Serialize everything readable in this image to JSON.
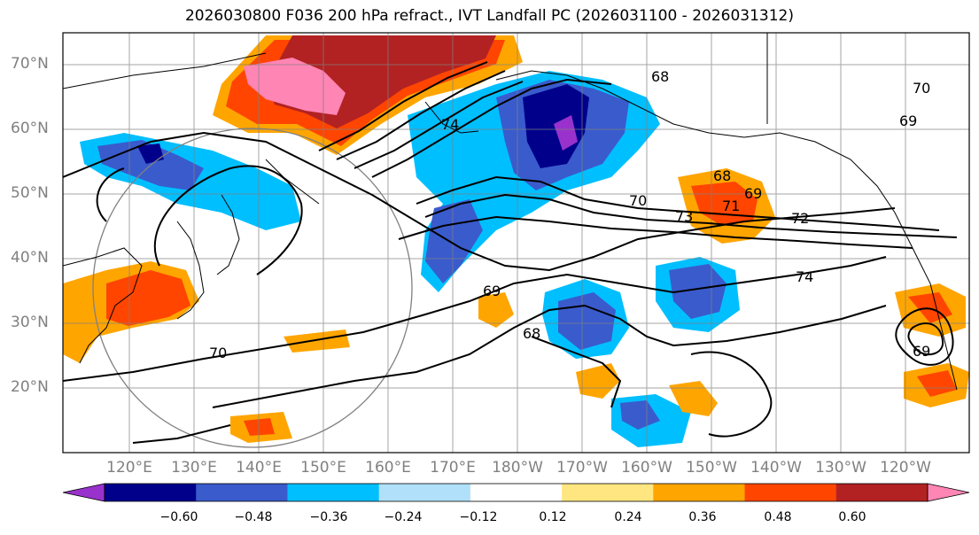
{
  "title": "2026030800 F036 200 hPa refract., IVT Landfall PC (2026031100 - 2026031312)",
  "lat_labels": [
    "70°N",
    "60°N",
    "50°N",
    "40°N",
    "30°N",
    "20°N"
  ],
  "lon_labels": [
    "120°E",
    "130°E",
    "140°E",
    "150°E",
    "160°E",
    "170°E",
    "180°W",
    "170°W",
    "160°W",
    "150°W",
    "140°W",
    "130°W",
    "120°W"
  ],
  "contour_labels": [
    "68",
    "69",
    "70",
    "71",
    "72",
    "73",
    "74"
  ],
  "colorbar": {
    "ticks": [
      "−0.60",
      "−0.48",
      "−0.36",
      "−0.24",
      "−0.12",
      "0.12",
      "0.24",
      "0.36",
      "0.48",
      "0.60"
    ],
    "colors": [
      "#9932cc",
      "#00008b",
      "#3a5bcc",
      "#00bfff",
      "#b0e0fa",
      "#ffffff",
      "#ffe680",
      "#ffa500",
      "#ff4500",
      "#b22222",
      "#ff85b4"
    ]
  },
  "colors": {
    "negative_strong": "#00008b",
    "negative_mid": "#3a5bcc",
    "negative_light": "#00bfff",
    "positive_light": "#ffa500",
    "positive_mid": "#ff4500",
    "positive_strong": "#b22222",
    "positive_max": "#ff85b4"
  }
}
